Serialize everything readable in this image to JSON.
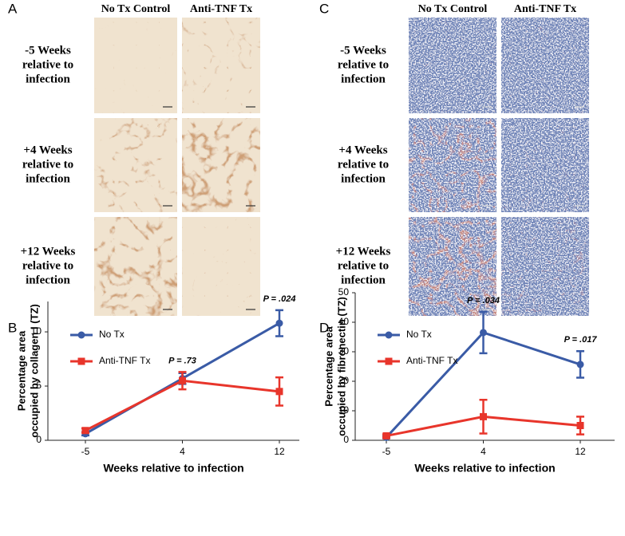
{
  "figure": {
    "panels": [
      {
        "letter": "A",
        "columns": [
          "No Tx Control",
          "Anti-TNF Tx"
        ],
        "rows": [
          [
            "-5 Weeks",
            "relative to",
            "infection"
          ],
          [
            "+4 Weeks",
            "relative to",
            "infection"
          ],
          [
            "+12 Weeks",
            "relative to",
            "infection"
          ]
        ]
      },
      {
        "letter": "C",
        "columns": [
          "No Tx Control",
          "Anti-TNF Tx"
        ],
        "rows": [
          [
            "-5 Weeks",
            "relative to",
            "infection"
          ],
          [
            "+4 Weeks",
            "relative to",
            "infection"
          ],
          [
            "+12 Weeks",
            "relative to",
            "infection"
          ]
        ]
      }
    ]
  },
  "chart_data": [
    {
      "type": "line",
      "letter": "B",
      "categories": [
        "-5",
        "4",
        "12"
      ],
      "ylabel": [
        "Percentage area",
        "occupied by collagen I (TZ)"
      ],
      "xlabel": "Weeks relative to infection",
      "ylim": [
        0,
        12.8
      ],
      "yticks": [
        0,
        5,
        10
      ],
      "legend": "upper left",
      "annotations": [
        null,
        "P = .73",
        "P = .024"
      ],
      "series": [
        {
          "name": "No Tx",
          "color": "#3a5ba6",
          "marker": "circle",
          "values": [
            0.6,
            5.7,
            10.8
          ],
          "errors": [
            0.15,
            0.5,
            1.2
          ]
        },
        {
          "name": "Anti-TNF Tx",
          "color": "#e8352b",
          "marker": "square",
          "values": [
            0.9,
            5.5,
            4.5
          ],
          "errors": [
            0.2,
            0.8,
            1.3
          ]
        }
      ]
    },
    {
      "type": "line",
      "letter": "D",
      "categories": [
        "-5",
        "4",
        "12"
      ],
      "ylabel": [
        "Percentage area",
        "occupied by fibronectin (TZ)"
      ],
      "xlabel": "Weeks relative to infection",
      "ylim": [
        0,
        50
      ],
      "yticks": [
        0,
        10,
        20,
        30,
        40,
        50
      ],
      "legend": "upper left",
      "annotations": [
        null,
        "P = .034",
        "P = .017"
      ],
      "series": [
        {
          "name": "No Tx",
          "color": "#3a5ba6",
          "marker": "circle",
          "values": [
            1,
            36.5,
            25.7
          ],
          "errors": [
            0.3,
            7,
            4.5
          ]
        },
        {
          "name": "Anti-TNF Tx",
          "color": "#e8352b",
          "marker": "square",
          "values": [
            1.5,
            8,
            5
          ],
          "errors": [
            0.5,
            5.7,
            3
          ]
        }
      ]
    }
  ]
}
